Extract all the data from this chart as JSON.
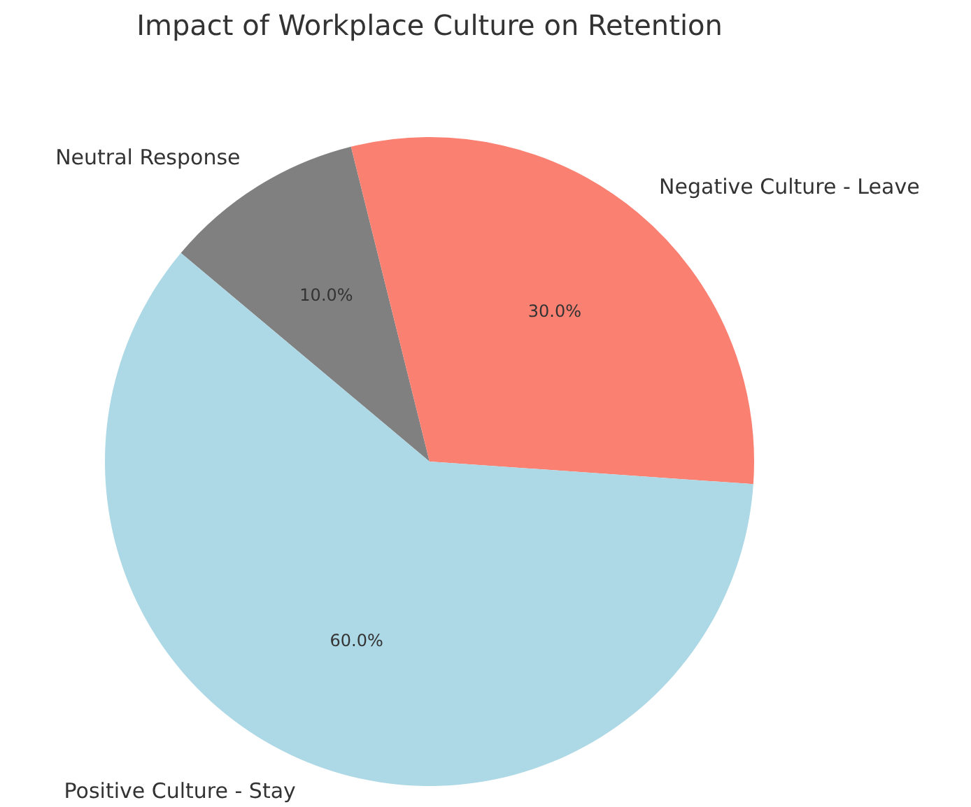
{
  "chart_data": {
    "type": "pie",
    "title": "Impact of Workplace Culture on Retention",
    "categories": [
      "Neutral Response",
      "Negative Culture - Leave",
      "Positive Culture - Stay"
    ],
    "values": [
      10,
      30,
      60
    ],
    "colors": [
      "#808080",
      "#fa8072",
      "#add8e6"
    ],
    "value_labels": [
      "10.0%",
      "30.0%",
      "60.0%"
    ],
    "legend": false
  }
}
